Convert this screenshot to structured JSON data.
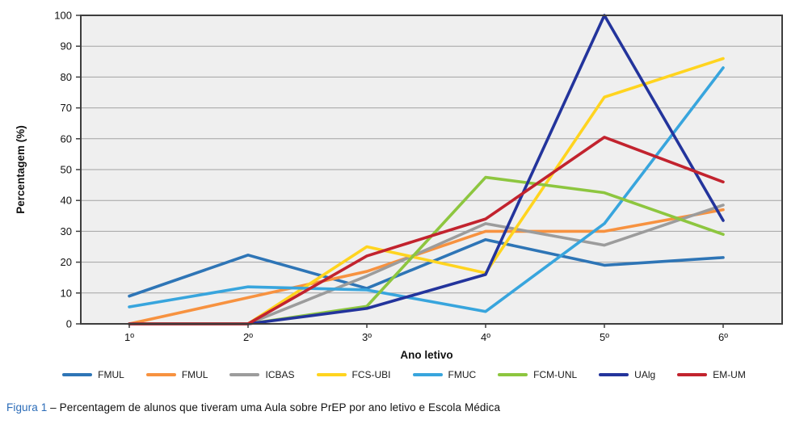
{
  "colors": {
    "plot_bg": "#efefef",
    "grid": "#a3a3a3",
    "axis": "#3d3d3d",
    "figure_label_blue": "#2b6cb8"
  },
  "caption": {
    "figure_label": "Figura 1",
    "separator": " – ",
    "text": "Percentagem de alunos que tiveram uma Aula sobre PrEP por ano letivo e Escola Médica"
  },
  "chart_data": {
    "type": "line",
    "title": "Percentagem de alunos que tiveram uma Aula sobre PrEP por ano letivo e Escola Médica",
    "xlabel": "Ano letivo",
    "ylabel": "Percentagem (%)",
    "categories": [
      "1º",
      "2º",
      "3º",
      "4º",
      "5º",
      "6º"
    ],
    "ylim": [
      0,
      100
    ],
    "y_ticks": [
      0,
      10,
      20,
      30,
      40,
      50,
      60,
      70,
      80,
      90,
      100
    ],
    "grid": true,
    "legend_position": "bottom",
    "series": [
      {
        "name": "FMUL",
        "color": "#2e75b6",
        "values": [
          9,
          22.3,
          11.5,
          27.3,
          19,
          21.5
        ]
      },
      {
        "name": "FMUL",
        "color": "#f79240",
        "values": [
          0,
          8.5,
          17,
          30,
          30,
          37
        ]
      },
      {
        "name": "ICBAS",
        "color": "#9c9c9c",
        "values": [
          0,
          0,
          15.5,
          32.5,
          25.5,
          38.5
        ]
      },
      {
        "name": "FCS-UBI",
        "color": "#ffd41f",
        "values": [
          0,
          0,
          25,
          16.5,
          73.5,
          86
        ]
      },
      {
        "name": "FMUC",
        "color": "#38a5dd",
        "values": [
          5.5,
          12,
          11,
          4,
          32.5,
          83
        ]
      },
      {
        "name": "FCM-UNL",
        "color": "#8dc63f",
        "values": [
          0,
          0,
          5.7,
          47.5,
          42.5,
          29
        ]
      },
      {
        "name": "UAlg",
        "color": "#23349c",
        "values": [
          0,
          0,
          5,
          16,
          100,
          33.5
        ]
      },
      {
        "name": "EM-UM",
        "color": "#c2232e",
        "values": [
          0,
          0,
          22,
          34,
          60.5,
          46
        ]
      }
    ]
  }
}
